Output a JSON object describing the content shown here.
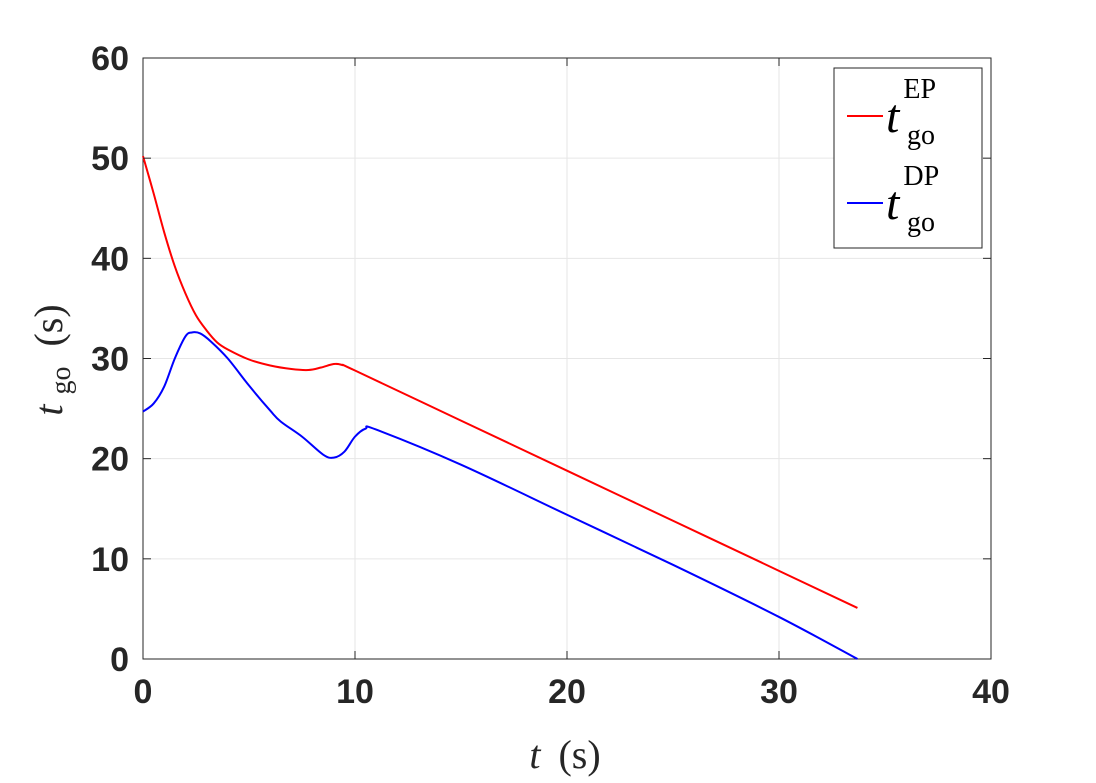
{
  "chart_data": {
    "type": "line",
    "xlabel_var": "t",
    "xlabel_unit": "(s)",
    "ylabel_var": "t",
    "ylabel_sub": "go",
    "ylabel_unit": "(s)",
    "xlim": [
      0,
      40
    ],
    "ylim": [
      0,
      60
    ],
    "xticks": [
      "0",
      "10",
      "20",
      "30",
      "40"
    ],
    "yticks": [
      "0",
      "10",
      "20",
      "30",
      "40",
      "50",
      "60"
    ],
    "grid": true,
    "legend_position": "top-right",
    "series": [
      {
        "name": "t_go^EP",
        "label_var": "t",
        "label_sup": "EP",
        "label_sub": "go",
        "color": "#ff0000",
        "points": [
          [
            0,
            50.2
          ],
          [
            0.5,
            46.5
          ],
          [
            1,
            42.6
          ],
          [
            1.5,
            39.2
          ],
          [
            2,
            36.5
          ],
          [
            2.5,
            34.3
          ],
          [
            3,
            32.8
          ],
          [
            3.5,
            31.6
          ],
          [
            4,
            30.9
          ],
          [
            5,
            29.9
          ],
          [
            6,
            29.3
          ],
          [
            7,
            28.95
          ],
          [
            7.8,
            28.85
          ],
          [
            8.4,
            29.1
          ],
          [
            9,
            29.45
          ],
          [
            9.4,
            29.35
          ],
          [
            10,
            28.8
          ],
          [
            15,
            23.8
          ],
          [
            20,
            18.8
          ],
          [
            25,
            13.8
          ],
          [
            30,
            8.8
          ],
          [
            33.7,
            5.1
          ]
        ]
      },
      {
        "name": "t_go^DP",
        "label_var": "t",
        "label_sup": "DP",
        "label_sub": "go",
        "color": "#0000ff",
        "points": [
          [
            0,
            24.7
          ],
          [
            0.5,
            25.5
          ],
          [
            1,
            27.2
          ],
          [
            1.5,
            30
          ],
          [
            2,
            32.2
          ],
          [
            2.3,
            32.6
          ],
          [
            2.7,
            32.5
          ],
          [
            3.2,
            31.7
          ],
          [
            4,
            30
          ],
          [
            5,
            27.3
          ],
          [
            6,
            24.8
          ],
          [
            6.5,
            23.7
          ],
          [
            7.5,
            22.2
          ],
          [
            8.5,
            20.4
          ],
          [
            9,
            20.1
          ],
          [
            9.5,
            20.7
          ],
          [
            10,
            22.2
          ],
          [
            10.5,
            23
          ],
          [
            11,
            22.9
          ],
          [
            15,
            19.4
          ],
          [
            20,
            14.4
          ],
          [
            25,
            9.4
          ],
          [
            30,
            4.2
          ],
          [
            33.7,
            0
          ]
        ]
      }
    ]
  }
}
